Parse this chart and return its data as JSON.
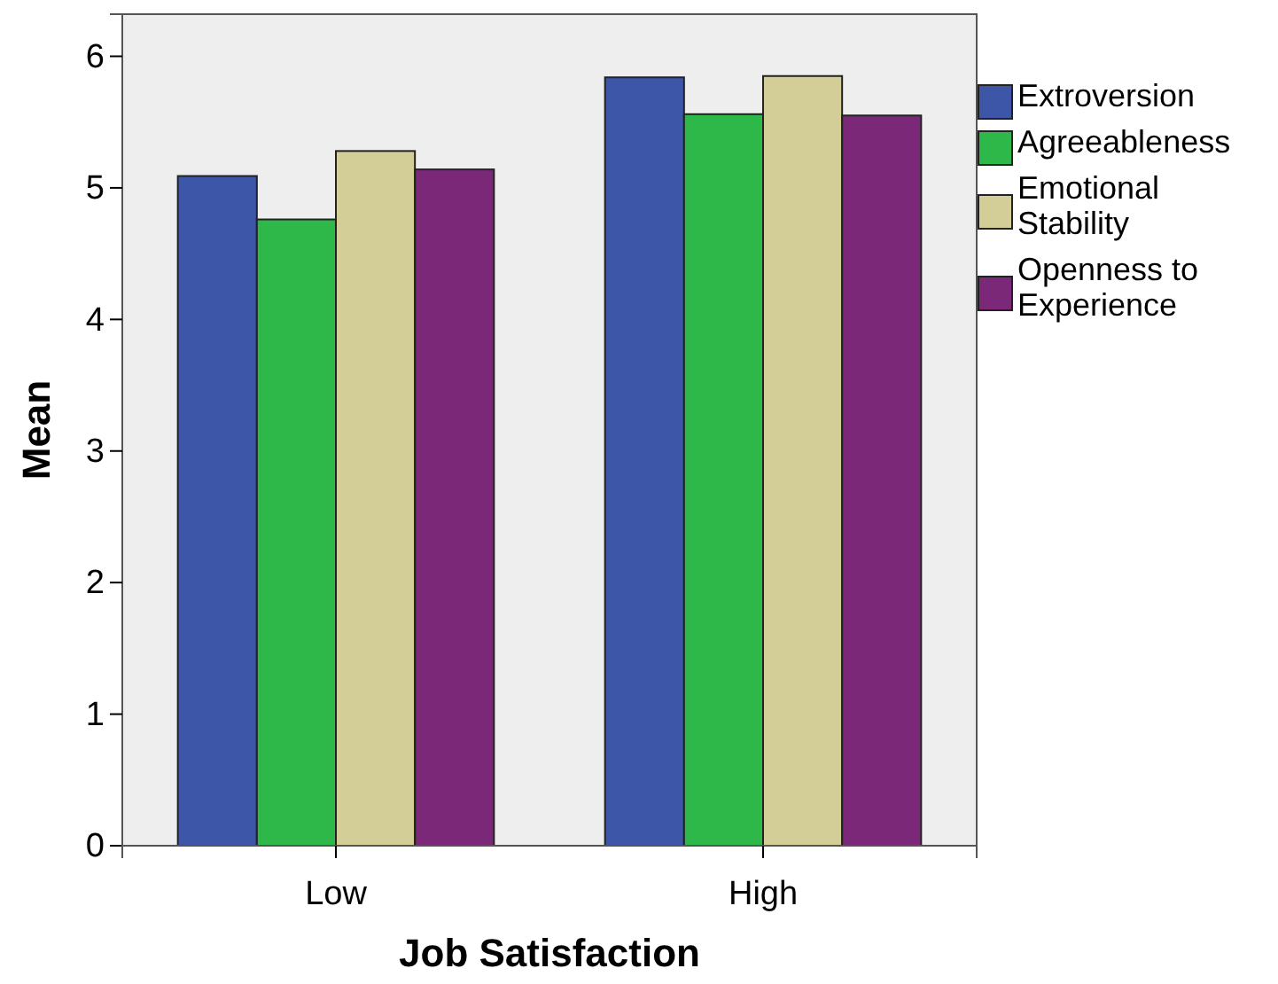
{
  "chart_data": {
    "type": "bar",
    "xlabel": "Job Satisfaction",
    "ylabel": "Mean",
    "categories": [
      "Low",
      "High"
    ],
    "series": [
      {
        "name": "Extroversion",
        "color": "#3d56a8",
        "values": [
          5.09,
          5.84
        ]
      },
      {
        "name": "Agreeableness",
        "color": "#2fb84a",
        "values": [
          4.76,
          5.56
        ]
      },
      {
        "name": "Emotional Stability",
        "color": "#d3ce98",
        "values": [
          5.28,
          5.85
        ]
      },
      {
        "name": "Openness to Experience",
        "color": "#7b2879",
        "values": [
          5.14,
          5.55
        ]
      }
    ],
    "ylim": [
      0,
      6.32
    ],
    "yticks": [
      0,
      1,
      2,
      3,
      4,
      5,
      6
    ],
    "grid": false,
    "legend": "right"
  }
}
